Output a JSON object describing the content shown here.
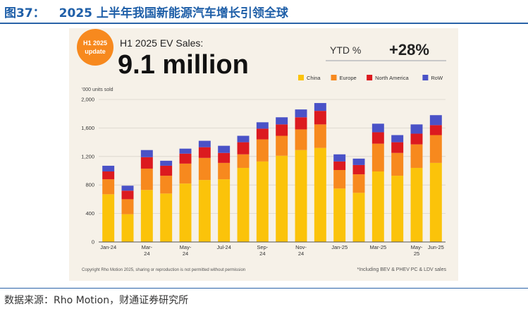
{
  "figure_title": {
    "number": "图37：",
    "text": "2025 上半年我国新能源汽车增长引领全球"
  },
  "source_line": "数据来源：Rho Motion，财通证券研究所",
  "badge": {
    "line1": "H1 2025",
    "line2": "update"
  },
  "headline": {
    "label": "H1 2025 EV Sales:",
    "value": "9.1 million"
  },
  "ytd": {
    "label": "YTD %",
    "value": "+28%"
  },
  "copyright": "Copyright Rho Motion 2025, sharing or reproduction is not permitted without permission",
  "footnote": "*Including BEV & PHEV PC & LDV sales",
  "colors": {
    "China": "#fbc30a",
    "Europe": "#f7891e",
    "North America": "#dc1a1f",
    "RoW": "#4a52c7",
    "badge": "#f7891e",
    "card": "#f6f1e8"
  },
  "chart_data": {
    "type": "bar",
    "stacked": true,
    "unit_label": "'000 units sold",
    "ylim": [
      0,
      2000
    ],
    "yticks": [
      0,
      400,
      800,
      "1,200",
      "1,600",
      "2,000"
    ],
    "ytick_values": [
      0,
      400,
      800,
      1200,
      1600,
      2000
    ],
    "legend_position": "top-right",
    "categories": [
      "Jan-24",
      "Feb-24",
      "Mar-24",
      "Apr-24",
      "May-24",
      "Jun-24",
      "Jul-24",
      "Aug-24",
      "Sep-24",
      "Oct-24",
      "Nov-24",
      "Dec-24",
      "Jan-25",
      "Feb-25",
      "Mar-25",
      "Apr-25",
      "May-25",
      "Jun-25"
    ],
    "xtick_labels": [
      [
        "Jan-24"
      ],
      [
        ""
      ],
      [
        "Mar-",
        "24"
      ],
      [
        ""
      ],
      [
        "May-",
        "24"
      ],
      [
        ""
      ],
      [
        "Jul-24"
      ],
      [
        ""
      ],
      [
        "Sep-",
        "24"
      ],
      [
        ""
      ],
      [
        "Nov-",
        "24"
      ],
      [
        ""
      ],
      [
        "Jan-25"
      ],
      [
        ""
      ],
      [
        "Mar-25"
      ],
      [
        ""
      ],
      [
        "May-",
        "25"
      ],
      [
        "Jun-25"
      ]
    ],
    "series": [
      {
        "name": "China",
        "values": [
          670,
          390,
          730,
          680,
          820,
          870,
          880,
          1040,
          1130,
          1210,
          1290,
          1320,
          750,
          690,
          990,
          930,
          1040,
          1110
        ]
      },
      {
        "name": "Europe",
        "values": [
          210,
          210,
          300,
          250,
          280,
          310,
          230,
          190,
          310,
          280,
          290,
          330,
          260,
          260,
          390,
          320,
          330,
          390
        ]
      },
      {
        "name": "North America",
        "values": [
          110,
          120,
          160,
          140,
          140,
          150,
          140,
          170,
          150,
          160,
          170,
          190,
          120,
          130,
          160,
          150,
          150,
          140
        ]
      },
      {
        "name": "RoW",
        "values": [
          80,
          70,
          100,
          70,
          70,
          90,
          100,
          90,
          90,
          100,
          110,
          110,
          100,
          90,
          120,
          100,
          130,
          140
        ]
      }
    ]
  }
}
